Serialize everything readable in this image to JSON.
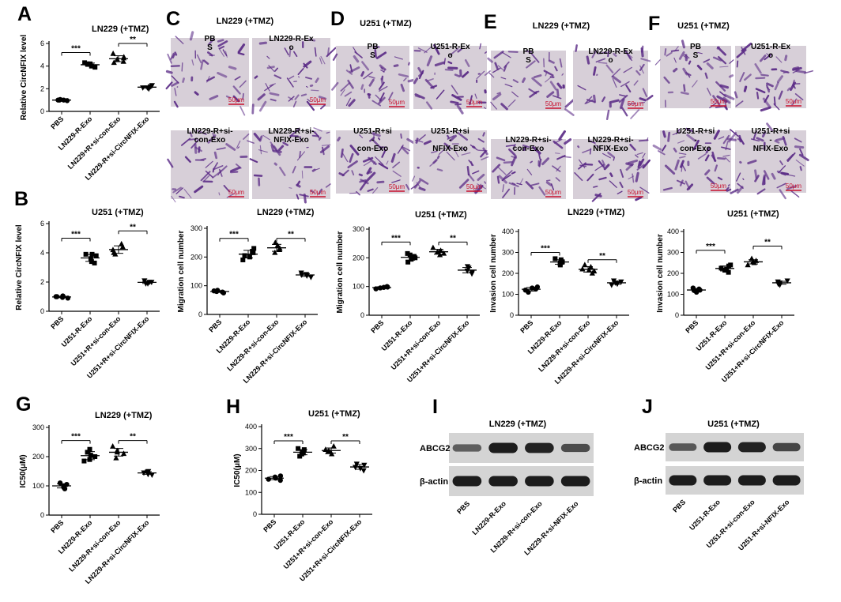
{
  "panel_letters": {
    "A": "A",
    "B": "B",
    "C": "C",
    "D": "D",
    "E": "E",
    "F": "F",
    "G": "G",
    "H": "H",
    "I": "I",
    "J": "J"
  },
  "colors": {
    "points": "#000000",
    "micrograph_bg": "#d7cfd8",
    "stain": "#5a2a86",
    "blot_bg": "#d4d4d4",
    "band": "#1c1c1c",
    "scale_bar": "#c8102e"
  },
  "chart_data": [
    {
      "panel": "A",
      "type": "scatter",
      "title": "LN229 (+TMZ)",
      "ylabel": "Relative CircNFIX level",
      "ylim": [
        0,
        6
      ],
      "yticks": [
        0,
        2,
        4,
        6
      ],
      "categories": [
        "PBS",
        "LN229-R-Exo",
        "LN229+R+si-con-Exo",
        "LN229-R+si-CircNFIX-Exo"
      ],
      "markers": [
        "circle",
        "square",
        "triangle",
        "invtriangle"
      ],
      "values": [
        [
          1.0,
          1.0,
          0.95,
          1.05,
          1.0
        ],
        [
          4.0,
          4.3,
          4.2,
          3.9,
          4.2
        ],
        [
          4.4,
          4.8,
          5.1,
          4.6,
          4.7,
          4.3
        ],
        [
          2.1,
          2.2,
          2.0,
          2.3,
          2.1
        ]
      ],
      "sig": [
        {
          "from": 0,
          "to": 1,
          "label": "***",
          "y": 5.2
        },
        {
          "from": 2,
          "to": 3,
          "label": "**",
          "y": 6.0
        }
      ]
    },
    {
      "panel": "B",
      "type": "scatter",
      "title": "U251 (+TMZ)",
      "ylabel": "Relative CircNFIX level",
      "ylim": [
        0,
        6
      ],
      "yticks": [
        0,
        2,
        4,
        6
      ],
      "categories": [
        "PBS",
        "U251-R-Exo",
        "U251+R+si-con-Exo",
        "U251+R+si-CircNFIX-Exo"
      ],
      "markers": [
        "circle",
        "square",
        "triangle",
        "invtriangle"
      ],
      "values": [
        [
          0.95,
          1.0,
          1.05,
          1.0,
          0.9
        ],
        [
          3.3,
          3.8,
          3.9,
          3.6,
          3.4,
          3.9
        ],
        [
          4.0,
          4.4,
          4.6,
          4.2,
          3.9
        ],
        [
          1.9,
          2.0,
          2.1,
          1.9,
          2.0
        ]
      ],
      "sig": [
        {
          "from": 0,
          "to": 1,
          "label": "***",
          "y": 5.0
        },
        {
          "from": 2,
          "to": 3,
          "label": "**",
          "y": 5.5
        }
      ]
    },
    {
      "panel": "C",
      "type": "scatter",
      "title": "LN229 (+TMZ)",
      "ylabel": "Migration cell number",
      "ylim": [
        0,
        300
      ],
      "yticks": [
        0,
        100,
        200,
        300
      ],
      "categories": [
        "PBS",
        "LN229-R-Exo",
        "LN229-R+si-con-Exo",
        "LN229-R+si-CircNFIX-Exo"
      ],
      "markers": [
        "circle",
        "square",
        "triangle",
        "invtriangle"
      ],
      "values": [
        [
          75,
          82,
          80,
          78,
          84
        ],
        [
          190,
          215,
          220,
          205,
          230,
          200
        ],
        [
          215,
          230,
          250,
          225,
          240
        ],
        [
          135,
          140,
          130,
          138,
          145
        ]
      ],
      "sig": [
        {
          "from": 0,
          "to": 1,
          "label": "***",
          "y": 265
        },
        {
          "from": 2,
          "to": 3,
          "label": "**",
          "y": 265
        }
      ]
    },
    {
      "panel": "D",
      "type": "scatter",
      "title": "U251 (+TMZ)",
      "ylabel": "Migration cell number",
      "ylim": [
        0,
        300
      ],
      "yticks": [
        0,
        100,
        200,
        300
      ],
      "categories": [
        "PBS",
        "U251-R-Exo",
        "U251+R+si-con-Exo",
        "U251+R+si-CircNFIX-Exo"
      ],
      "markers": [
        "circle",
        "square",
        "triangle",
        "invtriangle"
      ],
      "values": [
        [
          92,
          98,
          100,
          95,
          97
        ],
        [
          185,
          205,
          210,
          200,
          215,
          195
        ],
        [
          210,
          225,
          235,
          220,
          215
        ],
        [
          145,
          155,
          165,
          150,
          170
        ]
      ],
      "sig": [
        {
          "from": 0,
          "to": 1,
          "label": "***",
          "y": 255
        },
        {
          "from": 2,
          "to": 3,
          "label": "**",
          "y": 255
        }
      ]
    },
    {
      "panel": "E",
      "type": "scatter",
      "title": "LN229 (+TMZ)",
      "ylabel": "Invasion cell number",
      "ylim": [
        0,
        400
      ],
      "yticks": [
        0,
        100,
        200,
        300,
        400
      ],
      "categories": [
        "PBS",
        "LN229-R-Exo",
        "LN229-R+si-con-Exo",
        "LN229-R+si-CircNFIX-Exo"
      ],
      "markers": [
        "circle",
        "square",
        "triangle",
        "invtriangle"
      ],
      "values": [
        [
          110,
          125,
          130,
          120,
          135
        ],
        [
          240,
          255,
          270,
          250,
          265,
          245
        ],
        [
          200,
          215,
          230,
          220,
          240,
          210
        ],
        [
          145,
          155,
          165,
          150,
          160
        ]
      ],
      "sig": [
        {
          "from": 0,
          "to": 1,
          "label": "***",
          "y": 300
        },
        {
          "from": 2,
          "to": 3,
          "label": "**",
          "y": 265
        }
      ]
    },
    {
      "panel": "F",
      "type": "scatter",
      "title": "U251 (+TMZ)",
      "ylabel": "Invasion cell number",
      "ylim": [
        0,
        400
      ],
      "yticks": [
        0,
        100,
        200,
        300,
        400
      ],
      "categories": [
        "PBS",
        "U251-R-Exo",
        "U251+R+si-con-Exo",
        "U251+R+si-CircNFIX-Exo"
      ],
      "markers": [
        "circle",
        "square",
        "triangle",
        "invtriangle"
      ],
      "values": [
        [
          110,
          120,
          130,
          125,
          118
        ],
        [
          205,
          220,
          235,
          225,
          240,
          215
        ],
        [
          240,
          255,
          270,
          260,
          250
        ],
        [
          145,
          155,
          165,
          150,
          160
        ]
      ],
      "sig": [
        {
          "from": 0,
          "to": 1,
          "label": "***",
          "y": 310
        },
        {
          "from": 2,
          "to": 3,
          "label": "**",
          "y": 330
        }
      ]
    },
    {
      "panel": "G",
      "type": "scatter",
      "title": "LN229 (+TMZ)",
      "ylabel": "IC50(μM)",
      "ylim": [
        0,
        300
      ],
      "yticks": [
        0,
        100,
        200,
        300
      ],
      "categories": [
        "PBS",
        "LN229-R-Exo",
        "LN229-R+si-con-Exo",
        "LN229-R+si-CircNFIX-Exo"
      ],
      "markers": [
        "circle",
        "square",
        "triangle",
        "invtriangle"
      ],
      "values": [
        [
          90,
          100,
          105,
          110,
          95
        ],
        [
          185,
          205,
          225,
          200,
          215,
          190
        ],
        [
          195,
          215,
          235,
          220,
          210
        ],
        [
          140,
          145,
          150,
          138,
          148
        ]
      ],
      "sig": [
        {
          "from": 0,
          "to": 1,
          "label": "***",
          "y": 255
        },
        {
          "from": 2,
          "to": 3,
          "label": "**",
          "y": 255
        }
      ]
    },
    {
      "panel": "H",
      "type": "scatter",
      "title": "U251 (+TMZ)",
      "ylabel": "IC50(μM)",
      "ylim": [
        0,
        400
      ],
      "yticks": [
        0,
        100,
        200,
        300,
        400
      ],
      "categories": [
        "PBS",
        "U251-R-Exo",
        "U251+R+si-con-Exo",
        "U251+R+si-CircNFIX-Exo"
      ],
      "markers": [
        "circle",
        "square",
        "triangle",
        "invtriangle"
      ],
      "values": [
        [
          155,
          165,
          170,
          160,
          175
        ],
        [
          265,
          285,
          300,
          280,
          295,
          275
        ],
        [
          275,
          290,
          310,
          295,
          285
        ],
        [
          200,
          215,
          230,
          210,
          225
        ]
      ],
      "sig": [
        {
          "from": 0,
          "to": 1,
          "label": "***",
          "y": 335
        },
        {
          "from": 2,
          "to": 3,
          "label": "**",
          "y": 335
        }
      ]
    }
  ],
  "micrographs": {
    "C": {
      "title": "LN229 (+TMZ)",
      "labels": [
        "PB\nS",
        "LN229-R-Ex\no",
        "LN229-R+si-\ncon-Exo",
        "LN229-R+si-\nNFIX-Exo"
      ],
      "scale": "50μm"
    },
    "D": {
      "title": "U251 (+TMZ)",
      "labels": [
        "PB\nS",
        "U251-R-Ex\no",
        "U251-R+si\n-\ncon-Exo",
        "U251-R+si\n-\nNFIX-Exo"
      ],
      "scale": "50μm"
    },
    "E": {
      "title": "LN229 (+TMZ)",
      "labels": [
        "PB\nS",
        "LN229-R-Ex\no",
        "LN229-R+si-\ncon-Exo",
        "LN229-R+si-\nNFIX-Exo"
      ],
      "scale": "50μm"
    },
    "F": {
      "title": "U251 (+TMZ)",
      "labels": [
        "PB\nS",
        "U251-R-Ex\no",
        "U251-R+si\n-\ncon-Exo",
        "U251-R+si\n-\nNFIX-Exo"
      ],
      "scale": "50μm"
    }
  },
  "blots": {
    "I": {
      "title": "LN229 (+TMZ)",
      "rows": [
        "ABCG2",
        "β-actin"
      ],
      "lanes": [
        "PBS",
        "LN229-R-Exo",
        "LN229-R+si-con-Exo",
        "LN229-R+si-NFIX-Exo"
      ],
      "abcg2": [
        0.45,
        1.0,
        0.95,
        0.6
      ],
      "actin": [
        1,
        1,
        1,
        1
      ]
    },
    "J": {
      "title": "U251 (+TMZ)",
      "rows": [
        "ABCG2",
        "β-actin"
      ],
      "lanes": [
        "PBS",
        "U251-R-Exo",
        "U251-R+si-con-Exo",
        "U251-R+si-NFIX-Exo"
      ],
      "abcg2": [
        0.5,
        1.0,
        0.95,
        0.65
      ],
      "actin": [
        1,
        1,
        1,
        1
      ]
    }
  }
}
